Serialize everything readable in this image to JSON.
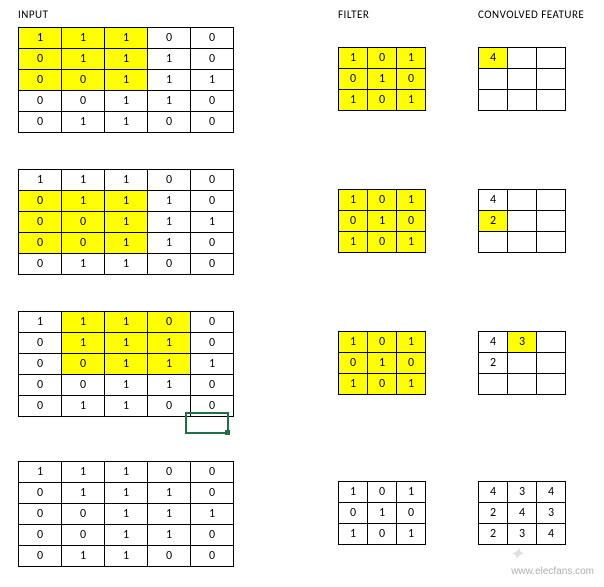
{
  "labels": {
    "input": "INPUT",
    "filter": "FILTER",
    "output": "CONVOLVED FEATURE"
  },
  "colors": {
    "highlight": "#ffff00",
    "cell_border": "#000000",
    "background": "#ffffff",
    "excel_selection": "#1e7145",
    "watermark": "#b0b0b0"
  },
  "typography": {
    "font_family": "Calibri, Arial, sans-serif",
    "header_fontsize": 11,
    "cell_fontsize": 12
  },
  "cell_sizes": {
    "input": {
      "w": 42,
      "h": 20
    },
    "filter": {
      "w": 28,
      "h": 20
    },
    "output": {
      "w": 28,
      "h": 20
    }
  },
  "steps": [
    {
      "input": {
        "rows": 5,
        "cols": 5,
        "values": [
          [
            1,
            1,
            1,
            0,
            0
          ],
          [
            0,
            1,
            1,
            1,
            0
          ],
          [
            0,
            0,
            1,
            1,
            1
          ],
          [
            0,
            0,
            1,
            1,
            0
          ],
          [
            0,
            1,
            1,
            0,
            0
          ]
        ],
        "highlight": {
          "r0": 0,
          "c0": 0,
          "r1": 2,
          "c1": 2
        }
      },
      "filter": {
        "rows": 3,
        "cols": 3,
        "values": [
          [
            1,
            0,
            1
          ],
          [
            0,
            1,
            0
          ],
          [
            1,
            0,
            1
          ]
        ],
        "highlight_all": true
      },
      "output": {
        "rows": 3,
        "cols": 3,
        "values": [
          [
            "4",
            "",
            ""
          ],
          [
            "",
            "",
            ""
          ],
          [
            "",
            "",
            ""
          ]
        ],
        "highlight_cells": [
          [
            0,
            0
          ]
        ]
      }
    },
    {
      "input": {
        "rows": 5,
        "cols": 5,
        "values": [
          [
            1,
            1,
            1,
            0,
            0
          ],
          [
            0,
            1,
            1,
            1,
            0
          ],
          [
            0,
            0,
            1,
            1,
            1
          ],
          [
            0,
            0,
            1,
            1,
            0
          ],
          [
            0,
            1,
            1,
            0,
            0
          ]
        ],
        "highlight": {
          "r0": 1,
          "c0": 0,
          "r1": 3,
          "c1": 2
        }
      },
      "filter": {
        "rows": 3,
        "cols": 3,
        "values": [
          [
            1,
            0,
            1
          ],
          [
            0,
            1,
            0
          ],
          [
            1,
            0,
            1
          ]
        ],
        "highlight_all": true
      },
      "output": {
        "rows": 3,
        "cols": 3,
        "values": [
          [
            "4",
            "",
            ""
          ],
          [
            "2",
            "",
            ""
          ],
          [
            "",
            "",
            ""
          ]
        ],
        "highlight_cells": [
          [
            1,
            0
          ]
        ]
      }
    },
    {
      "input": {
        "rows": 5,
        "cols": 5,
        "values": [
          [
            1,
            1,
            1,
            0,
            0
          ],
          [
            0,
            1,
            1,
            1,
            0
          ],
          [
            0,
            0,
            1,
            1,
            1
          ],
          [
            0,
            0,
            1,
            1,
            0
          ],
          [
            0,
            1,
            1,
            0,
            0
          ]
        ],
        "highlight": {
          "r0": 0,
          "c0": 1,
          "r1": 2,
          "c1": 3
        }
      },
      "filter": {
        "rows": 3,
        "cols": 3,
        "values": [
          [
            1,
            0,
            1
          ],
          [
            0,
            1,
            0
          ],
          [
            1,
            0,
            1
          ]
        ],
        "highlight_all": true
      },
      "output": {
        "rows": 3,
        "cols": 3,
        "values": [
          [
            "4",
            "3",
            ""
          ],
          [
            "2",
            "",
            ""
          ],
          [
            "",
            "",
            ""
          ]
        ],
        "highlight_cells": [
          [
            0,
            1
          ]
        ]
      },
      "excel_selection": {
        "below_input": true
      }
    },
    {
      "input": {
        "rows": 5,
        "cols": 5,
        "values": [
          [
            1,
            1,
            1,
            0,
            0
          ],
          [
            0,
            1,
            1,
            1,
            0
          ],
          [
            0,
            0,
            1,
            1,
            1
          ],
          [
            0,
            0,
            1,
            1,
            0
          ],
          [
            0,
            1,
            1,
            0,
            0
          ]
        ],
        "highlight": null
      },
      "filter": {
        "rows": 3,
        "cols": 3,
        "values": [
          [
            1,
            0,
            1
          ],
          [
            0,
            1,
            0
          ],
          [
            1,
            0,
            1
          ]
        ],
        "highlight_all": false
      },
      "output": {
        "rows": 3,
        "cols": 3,
        "values": [
          [
            "4",
            "3",
            "4"
          ],
          [
            "2",
            "4",
            "3"
          ],
          [
            "2",
            "3",
            "4"
          ]
        ],
        "highlight_cells": []
      }
    }
  ],
  "watermark": {
    "text": "www.elecfans.com"
  }
}
